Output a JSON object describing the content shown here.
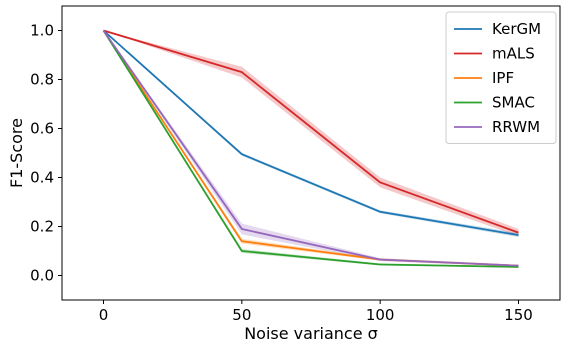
{
  "chart_data": {
    "type": "line",
    "xlabel": "Noise variance σ",
    "ylabel": "F1-Score",
    "xlim": [
      -15,
      165
    ],
    "ylim": [
      -0.1,
      1.1
    ],
    "x": [
      0,
      50,
      100,
      150
    ],
    "x_ticks": [
      0,
      50,
      100,
      150
    ],
    "x_tick_labels": [
      "0",
      "50",
      "100",
      "150"
    ],
    "y_ticks": [
      0.0,
      0.2,
      0.4,
      0.6,
      0.8,
      1.0
    ],
    "y_tick_labels": [
      "0.0",
      "0.2",
      "0.4",
      "0.6",
      "0.8",
      "1.0"
    ],
    "grid": false,
    "legend_position": "top-right",
    "series": [
      {
        "name": "KerGM",
        "color": "#1f77b4",
        "values": [
          1.0,
          0.495,
          0.26,
          0.165
        ],
        "band": [
          0.0,
          0.006,
          0.006,
          0.008
        ]
      },
      {
        "name": "mALS",
        "color": "#d62728",
        "values": [
          1.0,
          0.83,
          0.38,
          0.175
        ],
        "band": [
          0.0,
          0.022,
          0.02,
          0.015
        ]
      },
      {
        "name": "IPF",
        "color": "#ff7f0e",
        "values": [
          1.0,
          0.14,
          0.065,
          0.04
        ],
        "band": [
          0.0,
          0.01,
          0.005,
          0.004
        ]
      },
      {
        "name": "SMAC",
        "color": "#2ca02c",
        "values": [
          1.0,
          0.1,
          0.045,
          0.035
        ],
        "band": [
          0.0,
          0.008,
          0.004,
          0.003
        ]
      },
      {
        "name": "RRWM",
        "color": "#9467bd",
        "values": [
          1.0,
          0.19,
          0.065,
          0.04
        ],
        "band": [
          0.0,
          0.022,
          0.006,
          0.004
        ]
      }
    ]
  }
}
